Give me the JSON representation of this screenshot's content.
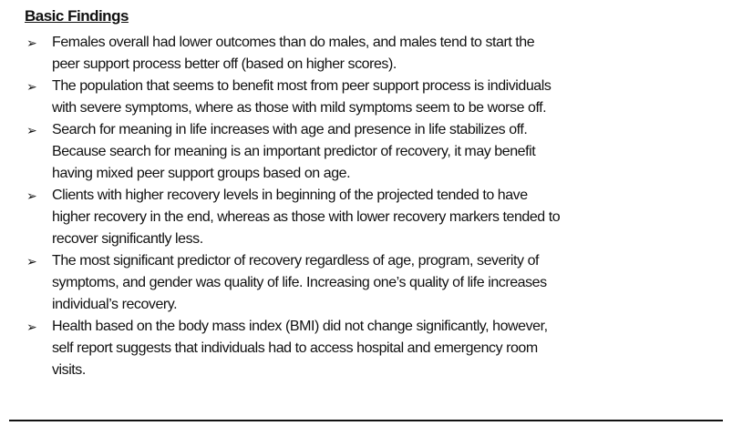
{
  "title": "Basic Findings",
  "bullet_icon": "arrow-bullet-icon",
  "items": [
    {
      "lines": [
        "Females overall had lower outcomes than do males, and males tend to start the",
        "peer support process better off (based on higher scores)."
      ]
    },
    {
      "lines": [
        "The population that seems to benefit most from peer support process is individuals",
        "with severe symptoms, where as those with mild symptoms seem to be worse off."
      ]
    },
    {
      "lines": [
        "Search for meaning in life increases with age and presence in life stabilizes off.",
        "Because search for meaning is an important predictor of recovery, it may benefit",
        "having mixed peer support groups based on age."
      ]
    },
    {
      "lines": [
        "Clients with higher recovery levels in beginning of the projected tended to have",
        "higher recovery in the end, whereas as those with lower recovery markers tended to",
        "recover significantly less."
      ]
    },
    {
      "lines": [
        "The most significant predictor of recovery regardless of age, program, severity of",
        "symptoms, and gender was quality of life. Increasing one’s quality of life increases",
        "individual’s recovery."
      ]
    },
    {
      "lines": [
        "Health based on the body mass index (BMI) did not change significantly, however,",
        "self report suggests that individuals had to access hospital and emergency room",
        "visits."
      ]
    }
  ]
}
